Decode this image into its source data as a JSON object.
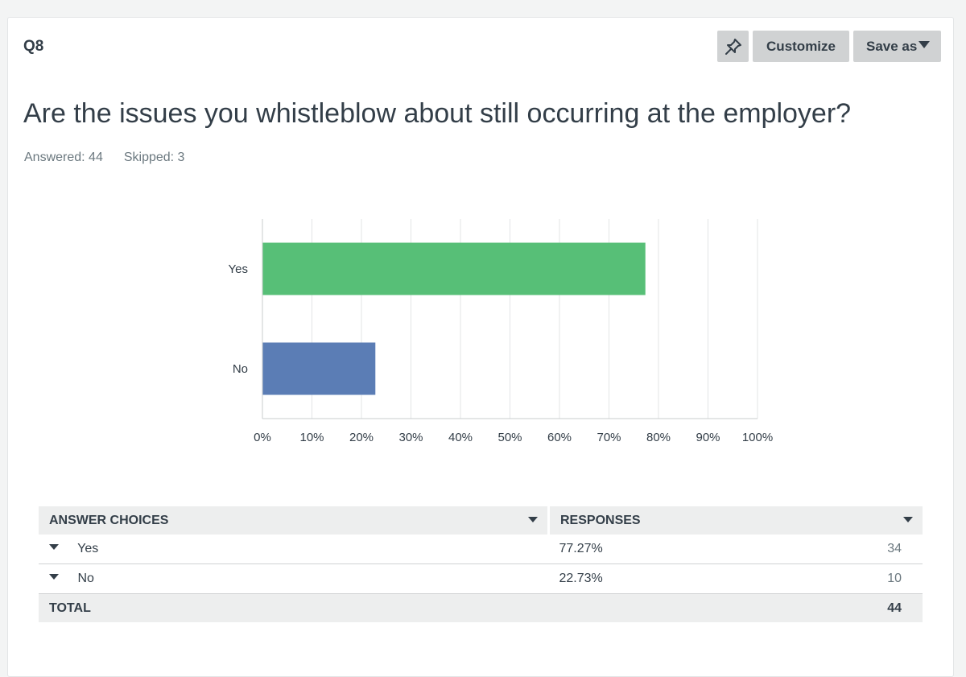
{
  "question": {
    "number": "Q8",
    "title": "Are the issues you whistleblow about still occurring at the employer?",
    "answered_text": "Answered: 44",
    "skipped_text": "Skipped: 3"
  },
  "toolbar": {
    "pin_icon": "pin-icon",
    "customize_label": "Customize",
    "save_as_label": "Save as"
  },
  "chart_data": {
    "type": "bar",
    "orientation": "horizontal",
    "categories": [
      "Yes",
      "No"
    ],
    "values": [
      77.27,
      22.73
    ],
    "colors": [
      "#57bf77",
      "#5b7db5"
    ],
    "xlim": [
      0,
      100
    ],
    "xticks": [
      "0%",
      "10%",
      "20%",
      "30%",
      "40%",
      "50%",
      "60%",
      "70%",
      "80%",
      "90%",
      "100%"
    ],
    "grid": true
  },
  "table": {
    "headers": {
      "answer_choices": "ANSWER CHOICES",
      "responses": "RESPONSES"
    },
    "rows": [
      {
        "label": "Yes",
        "percent": "77.27%",
        "count": "34"
      },
      {
        "label": "No",
        "percent": "22.73%",
        "count": "10"
      }
    ],
    "total": {
      "label": "TOTAL",
      "count": "44"
    }
  }
}
